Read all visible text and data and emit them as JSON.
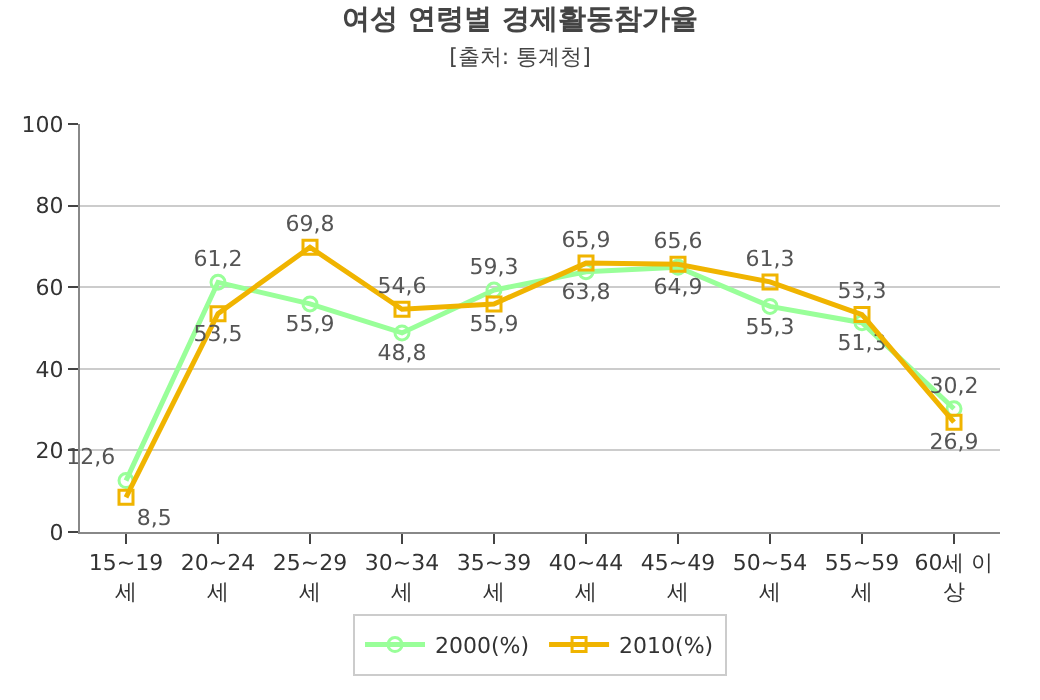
{
  "chart_data": {
    "type": "line",
    "title": "여성 연령별 경제활동참가율",
    "subtitle": "[출처: 통계청]",
    "categories": [
      "15~19\n세",
      "20~24\n세",
      "25~29\n세",
      "30~34\n세",
      "35~39\n세",
      "40~44\n세",
      "45~49\n세",
      "50~54\n세",
      "55~59\n세",
      "60세 이\n상"
    ],
    "series": [
      {
        "name": "2000(%)",
        "color": "#99ff99",
        "marker": "circle",
        "values": [
          12.6,
          61.2,
          55.9,
          48.8,
          59.3,
          63.8,
          64.9,
          55.3,
          51.3,
          30.2
        ],
        "value_labels": [
          "12,6",
          "61,2",
          "55,9",
          "48,8",
          "59,3",
          "63,8",
          "64,9",
          "55,3",
          "51,3",
          "30,2"
        ]
      },
      {
        "name": "2010(%)",
        "color": "#f0b400",
        "marker": "square",
        "values": [
          8.5,
          53.5,
          69.8,
          54.6,
          55.9,
          65.9,
          65.6,
          61.3,
          53.3,
          26.9
        ],
        "value_labels": [
          "8,5",
          "53,5",
          "69,8",
          "54,6",
          "55,9",
          "65,9",
          "65,6",
          "61,3",
          "53,3",
          "26,9"
        ]
      }
    ],
    "ylim": [
      0,
      100
    ],
    "yticks": [
      0,
      20,
      40,
      60,
      80,
      100
    ],
    "grid": "y",
    "legend": "bottom",
    "line_style": "solid"
  }
}
